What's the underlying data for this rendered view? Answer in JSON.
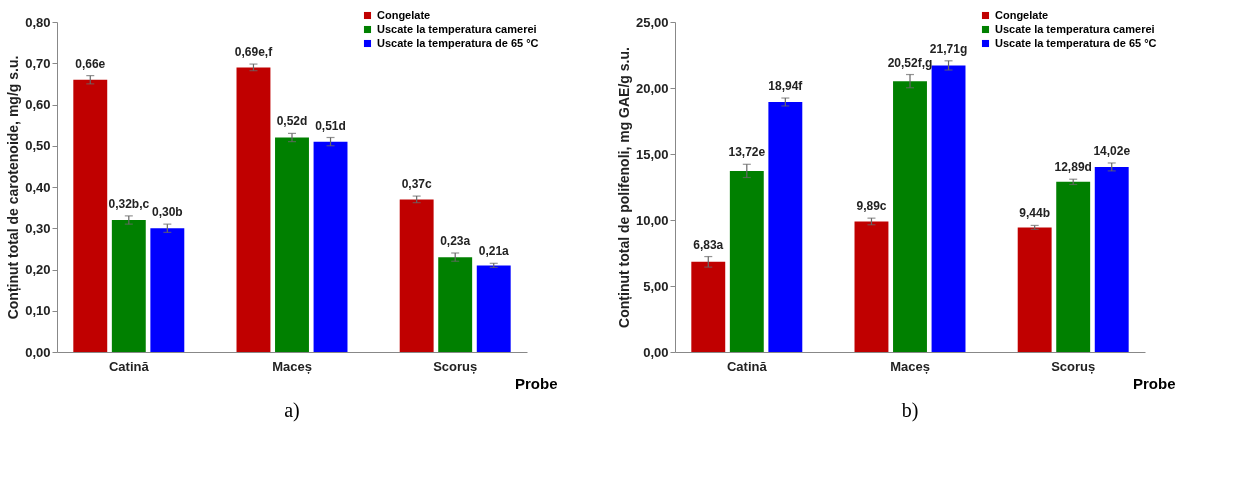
{
  "chart_data": [
    {
      "type": "bar",
      "categories": [
        "Catină",
        "Maceș",
        "Scoruș"
      ],
      "xlabel": "Probe",
      "ylabel": "Conținut total de carotenoide, mg/g s.u.",
      "ylim": [
        0,
        0.8
      ],
      "yticks": [
        {
          "value": 0,
          "label": "0,00"
        },
        {
          "value": 0.1,
          "label": "0,10"
        },
        {
          "value": 0.2,
          "label": "0,20"
        },
        {
          "value": 0.3,
          "label": "0,30"
        },
        {
          "value": 0.4,
          "label": "0,40"
        },
        {
          "value": 0.5,
          "label": "0,50"
        },
        {
          "value": 0.6,
          "label": "0,60"
        },
        {
          "value": 0.7,
          "label": "0,70"
        },
        {
          "value": 0.8,
          "label": "0,80"
        }
      ],
      "legend": "top right",
      "annotations": [
        "a)"
      ],
      "series": [
        {
          "name": "Congelate",
          "color": "#c00000",
          "values": [
            0.66,
            0.69,
            0.37
          ],
          "errors": [
            0.01,
            0.008,
            0.008
          ],
          "value_labels": [
            "0,66e",
            "0,69e,f",
            "0,37c"
          ]
        },
        {
          "name": "Uscate la temperatura camerei",
          "color": "#008000",
          "values": [
            0.32,
            0.52,
            0.23
          ],
          "errors": [
            0.01,
            0.01,
            0.01
          ],
          "value_labels": [
            "0,32b,c",
            "0,52d",
            "0,23a"
          ]
        },
        {
          "name": "Uscate la temperatura de 65 °C",
          "color": "#0000ff",
          "values": [
            0.3,
            0.51,
            0.21
          ],
          "errors": [
            0.01,
            0.01,
            0.005
          ],
          "value_labels": [
            "0,30b",
            "0,51d",
            "0,21a"
          ]
        }
      ]
    },
    {
      "type": "bar",
      "categories": [
        "Catină",
        "Maceș",
        "Scoruș"
      ],
      "xlabel": "Probe",
      "ylabel": "Conținut total de polifenoli, mg GAE/g s.u.",
      "ylim": [
        0,
        25
      ],
      "yticks": [
        {
          "value": 0,
          "label": "0,00"
        },
        {
          "value": 5,
          "label": "5,00"
        },
        {
          "value": 10,
          "label": "10,00"
        },
        {
          "value": 15,
          "label": "15,00"
        },
        {
          "value": 20,
          "label": "20,00"
        },
        {
          "value": 25,
          "label": "25,00"
        }
      ],
      "legend": "top right",
      "annotations": [
        "b)"
      ],
      "series": [
        {
          "name": "Congelate",
          "color": "#c00000",
          "values": [
            6.83,
            9.89,
            9.44
          ],
          "errors": [
            0.4,
            0.25,
            0.15
          ],
          "value_labels": [
            "6,83a",
            "9,89c",
            "9,44b"
          ]
        },
        {
          "name": "Uscate la temperatura camerei",
          "color": "#008000",
          "values": [
            13.72,
            20.52,
            12.89
          ],
          "errors": [
            0.5,
            0.5,
            0.2
          ],
          "value_labels": [
            "13,72e",
            "20,52f,g",
            "12,89d"
          ]
        },
        {
          "name": "Uscate la temperatura de 65 °C",
          "color": "#0000ff",
          "values": [
            18.94,
            21.71,
            14.02
          ],
          "errors": [
            0.3,
            0.35,
            0.3
          ],
          "value_labels": [
            "18,94f",
            "21,71g",
            "14,02e"
          ]
        }
      ]
    }
  ]
}
